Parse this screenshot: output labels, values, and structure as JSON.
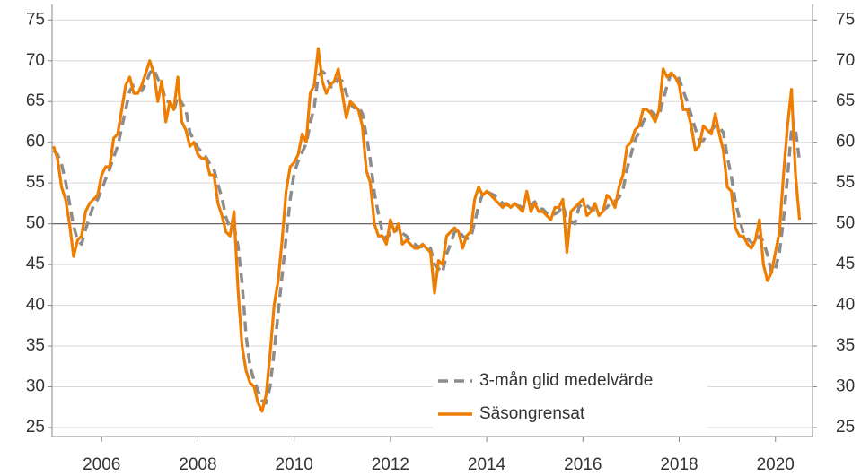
{
  "chart_data": {
    "type": "line",
    "x": [
      2005,
      2005.083,
      2005.167,
      2005.25,
      2005.333,
      2005.417,
      2005.5,
      2005.583,
      2005.667,
      2005.75,
      2005.833,
      2005.917,
      2006,
      2006.083,
      2006.167,
      2006.25,
      2006.333,
      2006.417,
      2006.5,
      2006.583,
      2006.667,
      2006.75,
      2006.833,
      2006.917,
      2007,
      2007.083,
      2007.167,
      2007.25,
      2007.333,
      2007.417,
      2007.5,
      2007.583,
      2007.667,
      2007.75,
      2007.833,
      2007.917,
      2008,
      2008.083,
      2008.167,
      2008.25,
      2008.333,
      2008.417,
      2008.5,
      2008.583,
      2008.667,
      2008.75,
      2008.833,
      2008.917,
      2009,
      2009.083,
      2009.167,
      2009.25,
      2009.333,
      2009.417,
      2009.5,
      2009.583,
      2009.667,
      2009.75,
      2009.833,
      2009.917,
      2010,
      2010.083,
      2010.167,
      2010.25,
      2010.333,
      2010.417,
      2010.5,
      2010.583,
      2010.667,
      2010.75,
      2010.833,
      2010.917,
      2011,
      2011.083,
      2011.167,
      2011.25,
      2011.333,
      2011.417,
      2011.5,
      2011.583,
      2011.667,
      2011.75,
      2011.833,
      2011.917,
      2012,
      2012.083,
      2012.167,
      2012.25,
      2012.333,
      2012.417,
      2012.5,
      2012.583,
      2012.667,
      2012.75,
      2012.833,
      2012.917,
      2013,
      2013.083,
      2013.167,
      2013.25,
      2013.333,
      2013.417,
      2013.5,
      2013.583,
      2013.667,
      2013.75,
      2013.833,
      2013.917,
      2014,
      2014.083,
      2014.167,
      2014.25,
      2014.333,
      2014.417,
      2014.5,
      2014.583,
      2014.667,
      2014.75,
      2014.833,
      2014.917,
      2015,
      2015.083,
      2015.167,
      2015.25,
      2015.333,
      2015.417,
      2015.5,
      2015.583,
      2015.667,
      2015.75,
      2015.833,
      2015.917,
      2016,
      2016.083,
      2016.167,
      2016.25,
      2016.333,
      2016.417,
      2016.5,
      2016.583,
      2016.667,
      2016.75,
      2016.833,
      2016.917,
      2017,
      2017.083,
      2017.167,
      2017.25,
      2017.333,
      2017.417,
      2017.5,
      2017.583,
      2017.667,
      2017.75,
      2017.833,
      2017.917,
      2018,
      2018.083,
      2018.167,
      2018.25,
      2018.333,
      2018.417,
      2018.5,
      2018.583,
      2018.667,
      2018.75,
      2018.833,
      2018.917,
      2019,
      2019.083,
      2019.167,
      2019.25,
      2019.333,
      2019.417,
      2019.5,
      2019.583,
      2019.667,
      2019.75,
      2019.833,
      2019.917,
      2020,
      2020.083,
      2020.167,
      2020.25,
      2020.333,
      2020.417,
      2020.5
    ],
    "series": [
      {
        "name": "3-mån glid medelvärde",
        "color": "#8c8c8c",
        "dashed": true,
        "values": [
          59,
          58.5,
          57.3,
          55.2,
          52.5,
          49.7,
          48,
          47.5,
          49.3,
          50.8,
          52.3,
          53,
          54.2,
          55.5,
          56.7,
          58.2,
          59.5,
          61.8,
          64,
          66.3,
          67,
          66.7,
          66.3,
          67.2,
          68.5,
          69,
          67.8,
          67,
          65,
          65,
          63.8,
          65.7,
          64.8,
          64,
          61.2,
          60.3,
          59.3,
          58.8,
          58.2,
          57.3,
          56.7,
          54.8,
          53.2,
          50.8,
          49.5,
          49.7,
          47.3,
          42.8,
          36.3,
          32.5,
          30.8,
          29.5,
          28.3,
          28,
          30,
          34.3,
          39,
          43.7,
          48.3,
          53,
          56.2,
          57.7,
          58.8,
          59.8,
          62.3,
          64.3,
          68.2,
          68.7,
          68.3,
          66.8,
          66.8,
          67.8,
          67.5,
          66,
          64.7,
          64.2,
          64.5,
          63.5,
          60.8,
          57.8,
          53.8,
          51.2,
          49,
          48.2,
          48.8,
          48.7,
          49.8,
          48.8,
          48.5,
          47.7,
          47.5,
          47.2,
          47.2,
          47.2,
          47,
          45,
          44.5,
          44,
          46.3,
          47.5,
          49,
          49.2,
          48.5,
          48.2,
          48.2,
          50.2,
          52.2,
          53.7,
          54,
          53.7,
          53.5,
          53,
          52.5,
          52.3,
          52.2,
          52.3,
          52.2,
          52,
          52.5,
          52.3,
          52.7,
          51.8,
          51.8,
          51.3,
          51,
          51.2,
          51.5,
          52.3,
          50.5,
          50.3,
          50,
          52,
          52.5,
          52.2,
          51.8,
          51.7,
          51.7,
          51.7,
          52,
          52.7,
          52.8,
          53.2,
          54.2,
          56.7,
          58.5,
          60.3,
          61.2,
          62.5,
          63.3,
          63.8,
          63.3,
          63.3,
          65.2,
          67,
          68.5,
          68.2,
          67.8,
          66.3,
          65,
          63.3,
          61.7,
          60.2,
          60.2,
          61,
          61.5,
          62,
          61.8,
          61.2,
          58.2,
          55.8,
          52.7,
          50.7,
          48.8,
          48.2,
          47.7,
          47.5,
          48.5,
          47.8,
          46.2,
          44,
          44.5,
          46.5,
          50.5,
          55.7,
          61.5,
          61.5,
          57.7
        ]
      },
      {
        "name": "Säsongrensat",
        "color": "#ee7d00",
        "dashed": false,
        "values": [
          59.5,
          58,
          54.5,
          53,
          50,
          46,
          48,
          48.5,
          51.5,
          52.5,
          53,
          53.5,
          56,
          57,
          57,
          60.5,
          61,
          64,
          67,
          68,
          66,
          66,
          67,
          68.5,
          70,
          68.5,
          65,
          67.5,
          62.5,
          65,
          64,
          68,
          62.5,
          61.5,
          59.5,
          60,
          58.5,
          58,
          58,
          56,
          56,
          52.5,
          51,
          49,
          48.5,
          51.5,
          42,
          35,
          32,
          30.5,
          30,
          28,
          27,
          29,
          34,
          40,
          43,
          48,
          54,
          57,
          57.5,
          58.5,
          61,
          60,
          66,
          67,
          71.5,
          67.5,
          66,
          67,
          67.5,
          69,
          66,
          63,
          65,
          64.5,
          64,
          62,
          56.5,
          55,
          50,
          48.5,
          48.5,
          47.5,
          50.5,
          49,
          50,
          47.5,
          48,
          47.5,
          47,
          47,
          47.5,
          47,
          46.5,
          41.5,
          45.5,
          45,
          48.5,
          49,
          49.5,
          49,
          47,
          48.5,
          49,
          53,
          54.5,
          53.5,
          54,
          53.5,
          53,
          52.5,
          52,
          52.5,
          52,
          52.5,
          52,
          51.5,
          54,
          51.5,
          52.5,
          51.5,
          51.5,
          51,
          50.5,
          52,
          52,
          53,
          46.5,
          51.5,
          52,
          52.5,
          53,
          51,
          51.5,
          52.5,
          51,
          51.5,
          53.5,
          53,
          52,
          54.5,
          56,
          59.5,
          60,
          61.5,
          62,
          64,
          64,
          63.5,
          62.5,
          64,
          69,
          68,
          68.5,
          68,
          67,
          64,
          64,
          62,
          59,
          59.5,
          62,
          61.5,
          61,
          63.5,
          61,
          59,
          54.5,
          54,
          49.5,
          48.5,
          48.5,
          47.5,
          47,
          48,
          50.5,
          45,
          43,
          44,
          46.5,
          49,
          56,
          62,
          66.5,
          56,
          50.5
        ]
      }
    ],
    "xlim": [
      2004.97,
      2020.77
    ],
    "xticks": [
      2006,
      2008,
      2010,
      2012,
      2014,
      2016,
      2018,
      2020
    ],
    "ylim": [
      23.9,
      76.9
    ],
    "yticks": [
      25,
      30,
      35,
      40,
      45,
      50,
      55,
      60,
      65,
      70,
      75
    ],
    "y2lim": [
      23.9,
      76.9
    ],
    "y2ticks": [
      25,
      30,
      35,
      40,
      45,
      50,
      55,
      60,
      65,
      70,
      75
    ],
    "hline": 50,
    "grid": true,
    "legend": "lower right"
  }
}
